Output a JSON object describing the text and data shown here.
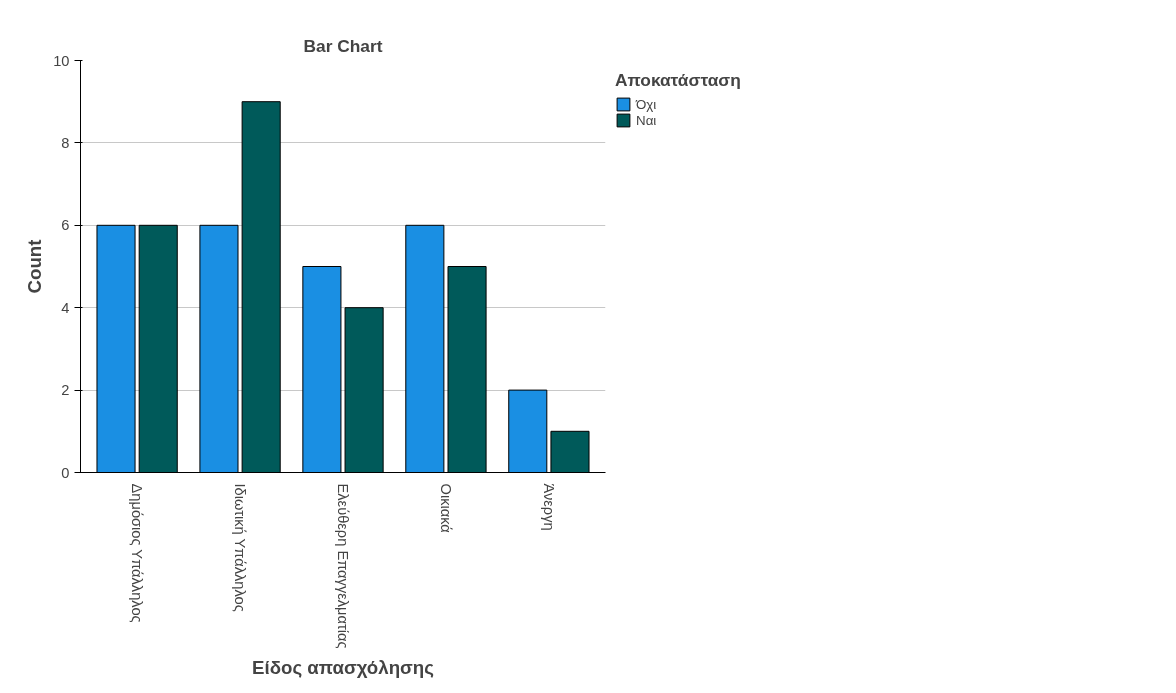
{
  "chart_data": {
    "type": "bar",
    "title": "Bar Chart",
    "xlabel": "Είδος απασχόλησης",
    "ylabel": "Count",
    "legend_title": "Αποκατάσταση",
    "categories": [
      "Δημόσιος Υπάλληλος",
      "Ιδιωτική Υπάλληλος",
      "Ελεύθερη Επαγγελματίας",
      "Οικιακά",
      "Άνεργη"
    ],
    "series": [
      {
        "name": "Όχι",
        "color": "#1a8fe3",
        "values": [
          6,
          6,
          5,
          6,
          2
        ]
      },
      {
        "name": "Ναι",
        "color": "#005a5a",
        "values": [
          6,
          9,
          4,
          5,
          1
        ]
      }
    ],
    "ylim": [
      0,
      10
    ],
    "yticks": [
      0,
      2,
      4,
      6,
      8,
      10
    ],
    "grid": "y",
    "legend": "top right"
  }
}
